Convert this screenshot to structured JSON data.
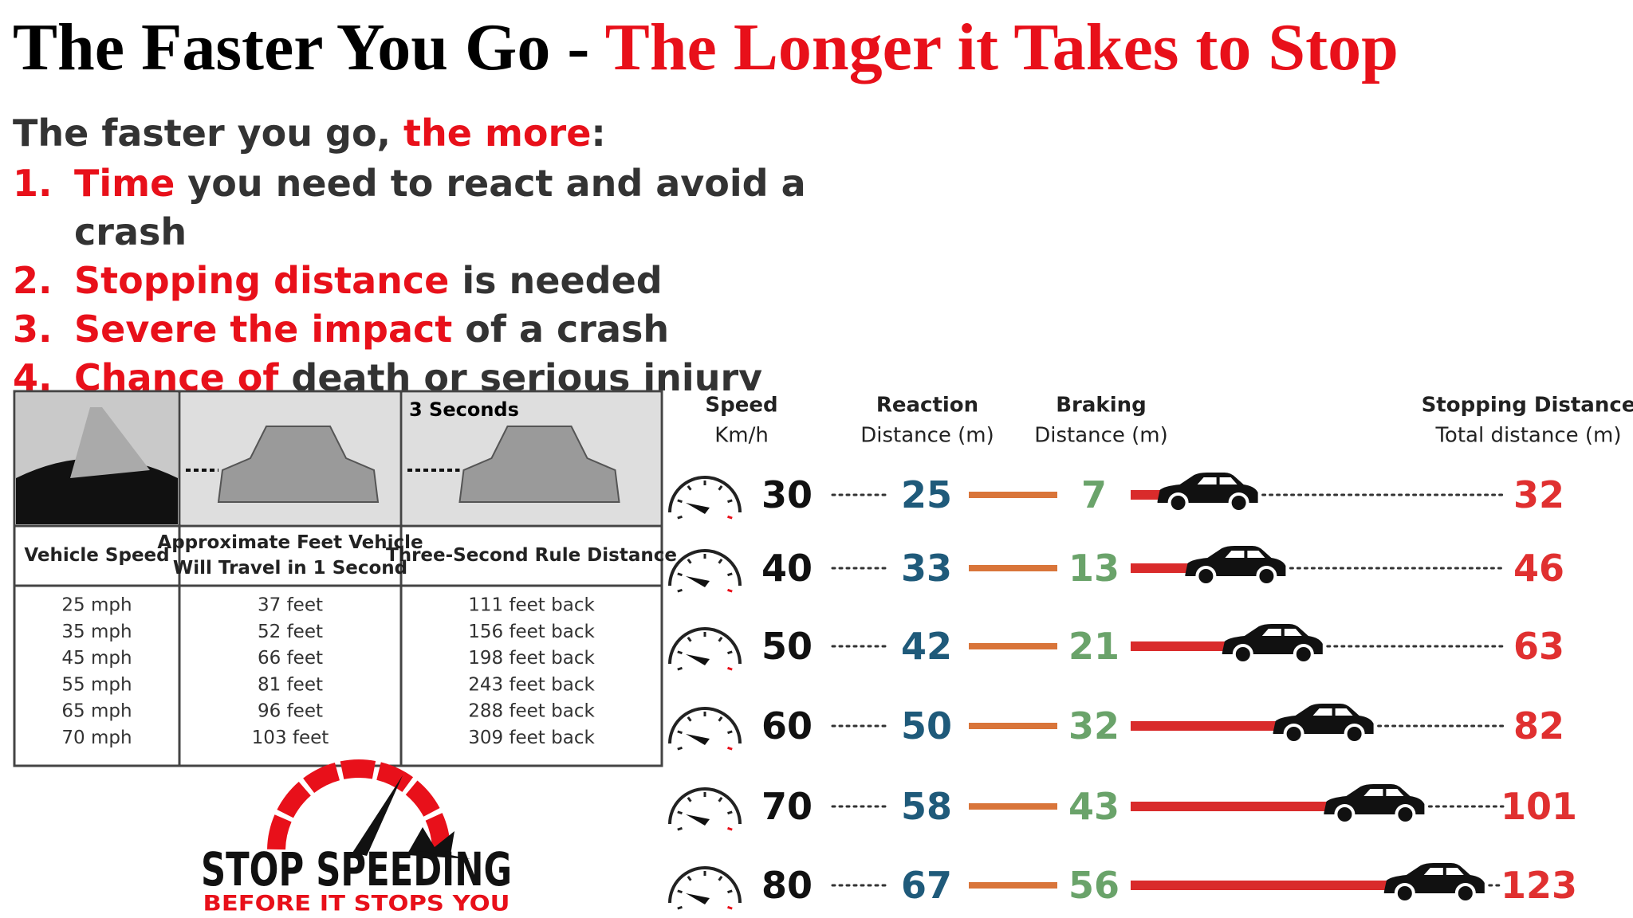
{
  "title": {
    "black": "The Faster You Go - ",
    "red": "The Longer it Takes to Stop"
  },
  "intro": {
    "lead": "The faster you go, ",
    "red": "the more",
    "end": ":"
  },
  "list": [
    {
      "num": "1.",
      "red": "Time",
      "rest": " you need to react and avoid a crash"
    },
    {
      "num": "2.",
      "red": "Stopping distance",
      "rest": " is needed"
    },
    {
      "num": "3.",
      "red": "Severe the impact",
      "rest": " of a crash"
    },
    {
      "num": "4.",
      "red": "Chance of",
      "rest": " death or serious injury"
    }
  ],
  "table": {
    "photo_caption": "3 Seconds",
    "headers": [
      [
        "Vehicle Speed"
      ],
      [
        "Approximate Feet Vehicle",
        "Will Travel in 1 Second"
      ],
      [
        "Three-Second Rule Distance"
      ]
    ],
    "rows": [
      [
        "25 mph",
        "37 feet",
        "111 feet back"
      ],
      [
        "35 mph",
        "52 feet",
        "156 feet back"
      ],
      [
        "45 mph",
        "66 feet",
        "198 feet back"
      ],
      [
        "55 mph",
        "81 feet",
        "243 feet back"
      ],
      [
        "65 mph",
        "96 feet",
        "288 feet back"
      ],
      [
        "70 mph",
        "103 feet",
        "309 feet back"
      ]
    ]
  },
  "logo": {
    "main": "STOP SPEEDING",
    "sub": "BEFORE IT STOPS YOU"
  },
  "stopping": {
    "headers": {
      "speed": [
        "Speed",
        "Km/h"
      ],
      "reaction": [
        "Reaction",
        "Distance (m)"
      ],
      "braking": [
        "Braking",
        "Distance (m)"
      ],
      "total": [
        "Stopping Distance",
        "Total distance (m)"
      ]
    },
    "rows": [
      {
        "speed": 30,
        "reaction": 25,
        "braking": 7,
        "total": 32
      },
      {
        "speed": 40,
        "reaction": 33,
        "braking": 13,
        "total": 46
      },
      {
        "speed": 50,
        "reaction": 42,
        "braking": 21,
        "total": 63
      },
      {
        "speed": 60,
        "reaction": 50,
        "braking": 32,
        "total": 82
      },
      {
        "speed": 70,
        "reaction": 58,
        "braking": 43,
        "total": 101
      },
      {
        "speed": 80,
        "reaction": 67,
        "braking": 56,
        "total": 123
      }
    ]
  }
}
